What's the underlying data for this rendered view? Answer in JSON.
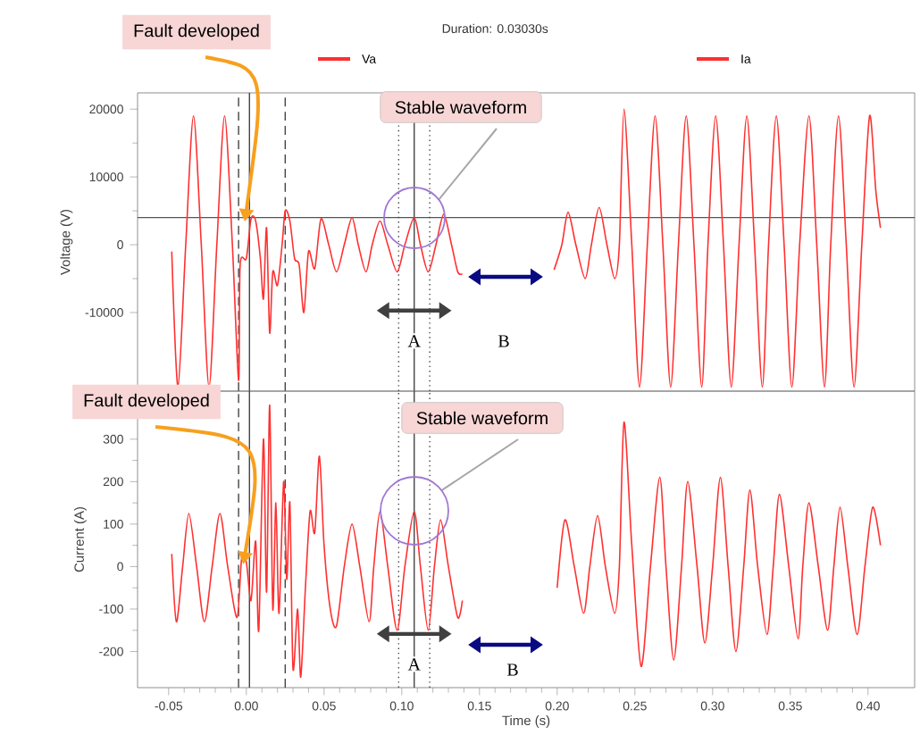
{
  "chart_data": [
    {
      "type": "line",
      "title": "Duration: 0.03030s",
      "ylabel": "Voltage (V)",
      "legend": "top",
      "tick_labels": "y",
      "xlim": [
        -0.07,
        0.43
      ],
      "ylim": [
        -21600,
        22400
      ],
      "yticks": [
        -10000,
        0,
        10000,
        20000
      ],
      "x": [
        -0.048,
        -0.044,
        -0.039,
        -0.034,
        -0.029,
        -0.024,
        -0.019,
        -0.014,
        -0.009,
        -0.005,
        -0.004,
        0.0,
        0.003,
        0.006,
        0.009,
        0.011,
        0.013,
        0.015,
        0.017,
        0.02,
        0.023,
        0.025,
        0.028,
        0.031,
        0.034,
        0.037,
        0.04,
        0.044,
        0.048,
        0.053,
        0.058,
        0.063,
        0.068,
        0.072,
        0.077,
        0.081,
        0.086,
        0.091,
        0.097,
        0.102,
        0.108,
        0.112,
        0.117,
        0.122,
        0.127,
        0.132,
        0.136,
        0.139,
        0.17,
        0.198,
        0.203,
        0.207,
        0.212,
        0.218,
        0.222,
        0.227,
        0.232,
        0.237,
        0.24,
        0.243,
        0.248,
        0.253,
        0.258,
        0.263,
        0.268,
        0.273,
        0.278,
        0.283,
        0.288,
        0.293,
        0.297,
        0.302,
        0.307,
        0.312,
        0.317,
        0.322,
        0.327,
        0.332,
        0.336,
        0.341,
        0.346,
        0.351,
        0.356,
        0.362,
        0.367,
        0.372,
        0.376,
        0.381,
        0.386,
        0.391,
        0.396,
        0.401,
        0.405,
        0.408
      ],
      "series": [
        {
          "name": "Va",
          "color": "#ff3030",
          "values": [
            -1000,
            -21000,
            0,
            19000,
            0,
            -21000,
            0,
            19000,
            0,
            -20000,
            -3000,
            -2000,
            3800,
            3500,
            -2000,
            -8000,
            2500,
            -13000,
            -4000,
            -6000,
            0,
            5000,
            3500,
            -2000,
            -3000,
            -10000,
            -1000,
            -3500,
            3800,
            0,
            -4000,
            0,
            4000,
            0,
            -4000,
            0,
            3500,
            0,
            -4000,
            0,
            4000,
            0,
            -4000,
            0,
            4500,
            0,
            -4000,
            -4300,
            null,
            -3700,
            0,
            4800,
            0,
            -5000,
            0,
            5500,
            0,
            -5000,
            0,
            20000,
            0,
            -21000,
            0,
            19000,
            0,
            -21000,
            0,
            19000,
            0,
            -21000,
            0,
            19000,
            0,
            -21000,
            0,
            19000,
            0,
            -21000,
            0,
            19000,
            0,
            -21000,
            0,
            19000,
            0,
            -21000,
            0,
            19000,
            0,
            -21000,
            0,
            19000,
            8000,
            2500
          ]
        }
      ],
      "ref_lines": [
        {
          "axis": "y",
          "value": 4000,
          "color": "#555555",
          "line_style": "solid"
        },
        {
          "axis": "x",
          "value": -0.005,
          "color": "#444444",
          "line_style": "dashed"
        },
        {
          "axis": "x",
          "value": 0.002,
          "color": "#444444",
          "line_style": "solid"
        },
        {
          "axis": "x",
          "value": 0.025,
          "color": "#444444",
          "line_style": "dashed"
        },
        {
          "axis": "x",
          "value": 0.098,
          "color": "#444444",
          "line_style": "dotted"
        },
        {
          "axis": "x",
          "value": 0.108,
          "color": "#444444",
          "line_style": "solid"
        },
        {
          "axis": "x",
          "value": 0.118,
          "color": "#444444",
          "line_style": "dotted"
        }
      ],
      "annotations": [
        {
          "text": "Fault developed",
          "x": -0.001,
          "y": 3400
        },
        "Stable waveform",
        {
          "text": "A",
          "x": 0.108,
          "y": -14200
        },
        "B"
      ]
    },
    {
      "type": "line",
      "xlabel": "Time (s)",
      "ylabel": "Current (A)",
      "legend": "top",
      "xlim": [
        -0.07,
        0.43
      ],
      "ylim": [
        -285,
        413
      ],
      "xticks": [
        {
          "value": -0.05,
          "label": "-0.05"
        },
        {
          "value": 0,
          "label": "0.00"
        },
        {
          "value": 0.05,
          "label": "0.05"
        },
        {
          "value": 0.1,
          "label": "0.10"
        },
        {
          "value": 0.15,
          "label": "0.15"
        },
        {
          "value": 0.2,
          "label": "0.20"
        },
        {
          "value": 0.25,
          "label": "0.25"
        },
        {
          "value": 0.3,
          "label": "0.30"
        },
        {
          "value": 0.35,
          "label": "0.35"
        },
        {
          "value": 0.4,
          "label": "0.40"
        }
      ],
      "yticks": [
        -200,
        -100,
        0,
        100,
        200,
        300
      ],
      "x": [
        -0.048,
        -0.045,
        -0.041,
        -0.037,
        -0.032,
        -0.027,
        -0.022,
        -0.017,
        -0.012,
        -0.006,
        -0.003,
        0.0,
        0.003,
        0.006,
        0.008,
        0.011,
        0.013,
        0.015,
        0.017,
        0.019,
        0.021,
        0.024,
        0.026,
        0.028,
        0.03,
        0.033,
        0.035,
        0.038,
        0.041,
        0.044,
        0.047,
        0.05,
        0.054,
        0.058,
        0.063,
        0.068,
        0.073,
        0.079,
        0.082,
        0.086,
        0.091,
        0.097,
        0.102,
        0.108,
        0.112,
        0.117,
        0.121,
        0.125,
        0.13,
        0.136,
        0.139,
        0.17,
        0.2,
        0.205,
        0.211,
        0.217,
        0.221,
        0.226,
        0.231,
        0.237,
        0.24,
        0.243,
        0.248,
        0.254,
        0.26,
        0.266,
        0.27,
        0.275,
        0.28,
        0.284,
        0.29,
        0.295,
        0.3,
        0.305,
        0.31,
        0.315,
        0.32,
        0.324,
        0.329,
        0.335,
        0.339,
        0.343,
        0.349,
        0.355,
        0.358,
        0.362,
        0.368,
        0.374,
        0.378,
        0.382,
        0.387,
        0.393,
        0.398,
        0.403,
        0.408
      ],
      "series": [
        {
          "name": "Ia",
          "color": "#ff3030",
          "values": [
            30,
            -130,
            0,
            125,
            0,
            -130,
            0,
            125,
            0,
            -120,
            20,
            10,
            -80,
            60,
            -150,
            300,
            -60,
            380,
            -100,
            150,
            -110,
            200,
            -30,
            150,
            -240,
            -100,
            -260,
            -50,
            130,
            80,
            260,
            50,
            -100,
            -140,
            0,
            100,
            0,
            -130,
            0,
            130,
            0,
            -150,
            0,
            130,
            0,
            -150,
            0,
            110,
            0,
            -120,
            -80,
            null,
            -50,
            110,
            0,
            -110,
            0,
            120,
            0,
            -110,
            0,
            340,
            50,
            -235,
            0,
            210,
            0,
            -220,
            0,
            200,
            0,
            -180,
            0,
            210,
            0,
            -200,
            0,
            180,
            0,
            -160,
            0,
            170,
            0,
            -170,
            0,
            150,
            0,
            -150,
            0,
            140,
            0,
            -160,
            0,
            140,
            50
          ]
        }
      ],
      "ref_lines": [
        {
          "axis": "x",
          "value": -0.005,
          "color": "#444444",
          "line_style": "dashed"
        },
        {
          "axis": "x",
          "value": 0.002,
          "color": "#444444",
          "line_style": "solid"
        },
        {
          "axis": "x",
          "value": 0.025,
          "color": "#444444",
          "line_style": "dashed"
        },
        {
          "axis": "x",
          "value": 0.098,
          "color": "#444444",
          "line_style": "dotted"
        },
        {
          "axis": "x",
          "value": 0.108,
          "color": "#444444",
          "line_style": "solid"
        },
        {
          "axis": "x",
          "value": 0.118,
          "color": "#444444",
          "line_style": "dotted"
        }
      ],
      "annotations": [
        {
          "text": "Fault developed",
          "x": -0.002,
          "y": 5
        },
        "Stable waveform",
        {
          "text": "A",
          "x": 0.108,
          "y": -230
        },
        "B"
      ]
    }
  ]
}
